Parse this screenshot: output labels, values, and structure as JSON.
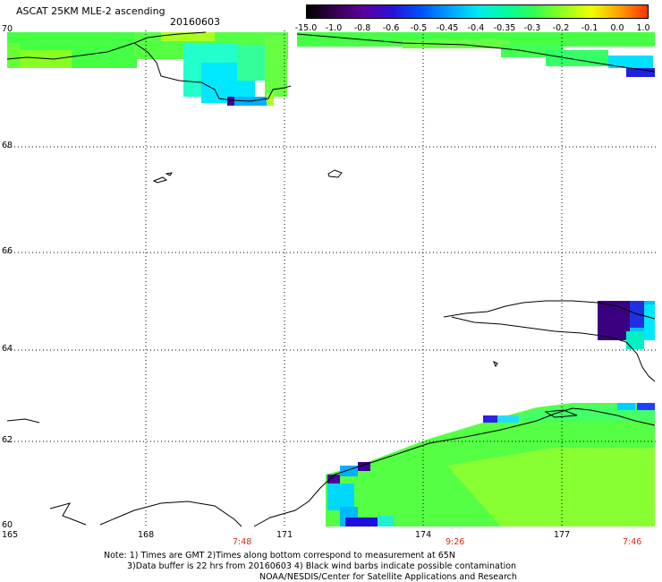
{
  "header": {
    "title": "ASCAT 25KM MLE-2 ascending",
    "date": "20160603"
  },
  "colorbar": {
    "labels": [
      "-15.0",
      "-1.0",
      "-0.8",
      "-0.6",
      "-0.5",
      "-0.45",
      "-0.4",
      "-0.35",
      "-0.3",
      "-0.2",
      "-0.1",
      "0.0",
      "1.0"
    ],
    "colors": [
      "#000000",
      "#3a0060",
      "#6a00b0",
      "#2a00e0",
      "#0040ff",
      "#0090ff",
      "#00d8ff",
      "#00ffb0",
      "#40ff40",
      "#a0ff20",
      "#ffff00",
      "#ff9000",
      "#ff2000"
    ]
  },
  "axes": {
    "y_labels": [
      "70",
      "68",
      "66",
      "64",
      "62",
      "60"
    ],
    "x_labels": [
      "165",
      "168",
      "171",
      "174",
      "177"
    ],
    "time_labels": [
      "7:48",
      "9:26",
      "7:46"
    ]
  },
  "notes": {
    "line1": "Note: 1) Times are GMT 2)Times along bottom correspond to measurement at 65N",
    "line2": "3)Data buffer is 22 hrs from 20160603 4) Black wind barbs indicate possible contamination",
    "line3": "NOAA/NESDIS/Center for Satellite Applications and Research"
  }
}
